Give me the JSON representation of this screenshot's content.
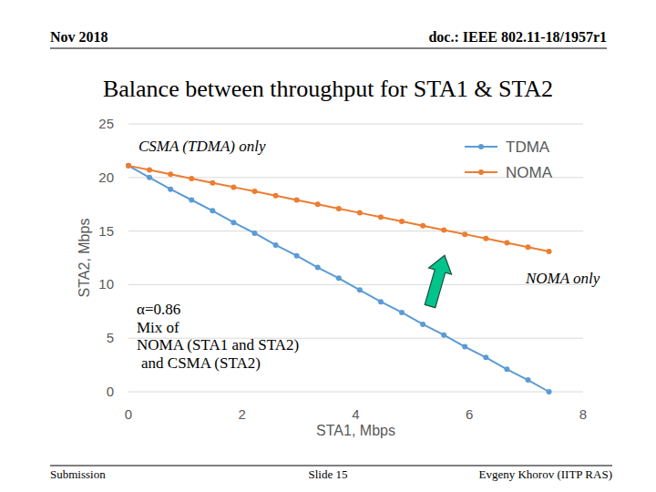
{
  "page": {
    "header_left": "Nov 2018",
    "header_right": "doc.: IEEE 802.11-18/1957r1",
    "footer_left": "Submission",
    "footer_center": "Slide 15",
    "footer_right": "Evgeny Khorov (IITP RAS)"
  },
  "chart_data": {
    "type": "line",
    "title": "Balance between throughput for STA1 & STA2",
    "x_label": "STA1, Mbps",
    "y_label": "STA2, Mbps",
    "x": [
      0,
      0.37,
      0.74,
      1.11,
      1.48,
      1.85,
      2.22,
      2.59,
      2.96,
      3.33,
      3.7,
      4.07,
      4.44,
      4.81,
      5.18,
      5.55,
      5.92,
      6.29,
      6.66,
      7.03,
      7.4
    ],
    "series": [
      {
        "name": "TDMA",
        "color": "#5b9bd5",
        "marker": "circle",
        "line_style": "solid",
        "values": [
          21.1,
          20.0,
          18.9,
          17.9,
          16.9,
          15.8,
          14.8,
          13.7,
          12.7,
          11.6,
          10.6,
          9.5,
          8.4,
          7.4,
          6.3,
          5.3,
          4.2,
          3.2,
          2.1,
          1.1,
          0
        ]
      },
      {
        "name": "NOMA",
        "color": "#ed7d31",
        "marker": "circle",
        "line_style": "solid",
        "values": [
          21.1,
          20.7,
          20.3,
          19.9,
          19.5,
          19.1,
          18.7,
          18.3,
          17.9,
          17.5,
          17.1,
          16.7,
          16.3,
          15.9,
          15.5,
          15.1,
          14.7,
          14.3,
          13.9,
          13.5,
          13.1
        ]
      }
    ],
    "xlim": [
      0,
      8
    ],
    "xticks": [
      0,
      2,
      4,
      6,
      8
    ],
    "ylim": [
      0,
      25
    ],
    "yticks": [
      0,
      5,
      10,
      15,
      20,
      25
    ],
    "grid": true,
    "legend": "upper right",
    "annotations": [
      {
        "text": "CSMA (TDMA) only"
      },
      {
        "text": "NOMA only"
      },
      {
        "lines": [
          "α=0.86",
          "Mix of",
          "NOMA (STA1 and STA2)",
          "and CSMA (STA2)"
        ]
      }
    ]
  }
}
